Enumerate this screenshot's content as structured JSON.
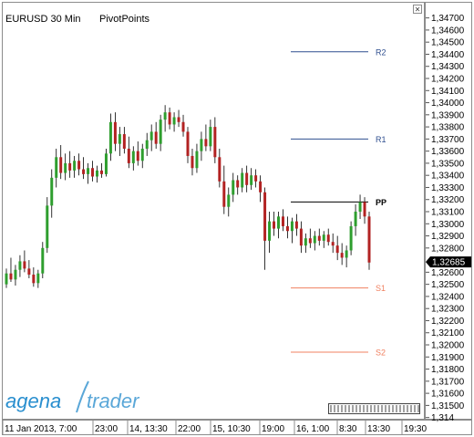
{
  "header": {
    "symbol_timeframe": "EURUSD 30 Min",
    "indicator": "PivotPoints"
  },
  "logo": {
    "part1": "agena",
    "part2": "trader"
  },
  "controls": {
    "close_glyph": "×"
  },
  "colors": {
    "bull": "#2e9e2e",
    "bear": "#b22222",
    "wick": "#000000",
    "resistance": "#2f4f8f",
    "pivot": "#000000",
    "support": "#f08060",
    "logo_primary": "#2a8fcf",
    "logo_secondary": "#5aa7d8"
  },
  "chart_data": {
    "type": "candlestick",
    "symbol": "EURUSD",
    "timeframe": "30 Min",
    "ylim": [
      1.3142,
      1.3475
    ],
    "y_ticks": [
      "1,34700",
      "1,34600",
      "1,34500",
      "1,34400",
      "1,34300",
      "1,34200",
      "1,34100",
      "1,34000",
      "1,33900",
      "1,33800",
      "1,33700",
      "1,33600",
      "1,33500",
      "1,33400",
      "1,33300",
      "1,33200",
      "1,33100",
      "1,33000",
      "1,32900",
      "1,32800",
      "1,32600",
      "1,32500",
      "1,32400",
      "1,32300",
      "1,32200",
      "1,32100",
      "1,32000",
      "1,31900",
      "1,31800",
      "1,31700",
      "1,31600",
      "1,31500",
      "1,314"
    ],
    "x_labels": [
      "11 Jan 2013, 7:00",
      "23:00",
      "14, 13:30",
      "22:00",
      "15, 10:30",
      "19:00",
      "16, 1:00",
      "8:30",
      "13:30",
      "19:30"
    ],
    "last_price": "1,32685",
    "pivot_levels": [
      {
        "name": "R2",
        "value": 1.3442
      },
      {
        "name": "R1",
        "value": 1.337
      },
      {
        "name": "PP",
        "value": 1.3318
      },
      {
        "name": "S1",
        "value": 1.3247
      },
      {
        "name": "S2",
        "value": 1.3194
      }
    ],
    "ohlc": [
      [
        1.325,
        1.3263,
        1.3247,
        1.3259
      ],
      [
        1.3259,
        1.3272,
        1.3252,
        1.3254
      ],
      [
        1.3254,
        1.3266,
        1.3249,
        1.3262
      ],
      [
        1.3262,
        1.3274,
        1.3256,
        1.3269
      ],
      [
        1.3269,
        1.3278,
        1.326,
        1.3263
      ],
      [
        1.3263,
        1.327,
        1.3255,
        1.3258
      ],
      [
        1.3258,
        1.3264,
        1.3248,
        1.3251
      ],
      [
        1.3251,
        1.3262,
        1.3247,
        1.3259
      ],
      [
        1.3259,
        1.3285,
        1.3255,
        1.328
      ],
      [
        1.328,
        1.3322,
        1.3276,
        1.3315
      ],
      [
        1.3315,
        1.3345,
        1.3305,
        1.3338
      ],
      [
        1.3338,
        1.3362,
        1.333,
        1.3355
      ],
      [
        1.3355,
        1.3365,
        1.3337,
        1.3342
      ],
      [
        1.3342,
        1.3358,
        1.3336,
        1.335
      ],
      [
        1.335,
        1.336,
        1.3338,
        1.3344
      ],
      [
        1.3344,
        1.3356,
        1.3338,
        1.3352
      ],
      [
        1.3352,
        1.3358,
        1.334,
        1.3345
      ],
      [
        1.3345,
        1.3355,
        1.3337,
        1.3341
      ],
      [
        1.3341,
        1.335,
        1.3333,
        1.3346
      ],
      [
        1.3346,
        1.3352,
        1.3335,
        1.3339
      ],
      [
        1.3339,
        1.3348,
        1.3334,
        1.3344
      ],
      [
        1.3344,
        1.335,
        1.3338,
        1.3341
      ],
      [
        1.3341,
        1.3362,
        1.3339,
        1.3358
      ],
      [
        1.3358,
        1.3391,
        1.3352,
        1.3384
      ],
      [
        1.3384,
        1.3392,
        1.336,
        1.3366
      ],
      [
        1.3366,
        1.338,
        1.3356,
        1.3374
      ],
      [
        1.3374,
        1.338,
        1.3358,
        1.3362
      ],
      [
        1.3362,
        1.3372,
        1.3346,
        1.335
      ],
      [
        1.335,
        1.3364,
        1.3344,
        1.336
      ],
      [
        1.336,
        1.3368,
        1.3348,
        1.3352
      ],
      [
        1.3352,
        1.3366,
        1.3346,
        1.3362
      ],
      [
        1.3362,
        1.3375,
        1.3356,
        1.3369
      ],
      [
        1.3369,
        1.3382,
        1.336,
        1.3376
      ],
      [
        1.3376,
        1.3384,
        1.3362,
        1.3366
      ],
      [
        1.3366,
        1.339,
        1.336,
        1.3386
      ],
      [
        1.3386,
        1.3398,
        1.3376,
        1.3392
      ],
      [
        1.3392,
        1.3396,
        1.3378,
        1.3382
      ],
      [
        1.3382,
        1.3392,
        1.3376,
        1.3388
      ],
      [
        1.3388,
        1.3394,
        1.338,
        1.3384
      ],
      [
        1.3384,
        1.339,
        1.3372,
        1.3376
      ],
      [
        1.3376,
        1.338,
        1.335,
        1.3356
      ],
      [
        1.3356,
        1.3362,
        1.334,
        1.3346
      ],
      [
        1.3346,
        1.3366,
        1.3342,
        1.336
      ],
      [
        1.336,
        1.3376,
        1.3352,
        1.337
      ],
      [
        1.337,
        1.3382,
        1.336,
        1.3364
      ],
      [
        1.3364,
        1.3386,
        1.336,
        1.338
      ],
      [
        1.338,
        1.3388,
        1.335,
        1.3355
      ],
      [
        1.3355,
        1.3362,
        1.333,
        1.3335
      ],
      [
        1.3335,
        1.3348,
        1.3308,
        1.3314
      ],
      [
        1.3314,
        1.333,
        1.3306,
        1.3324
      ],
      [
        1.3324,
        1.3342,
        1.3318,
        1.3336
      ],
      [
        1.3336,
        1.334,
        1.3324,
        1.333
      ],
      [
        1.333,
        1.3346,
        1.3326,
        1.3342
      ],
      [
        1.3342,
        1.3348,
        1.3326,
        1.3332
      ],
      [
        1.3332,
        1.3346,
        1.3328,
        1.334
      ],
      [
        1.334,
        1.3345,
        1.333,
        1.3335
      ],
      [
        1.3335,
        1.334,
        1.3318,
        1.3326
      ],
      [
        1.3326,
        1.333,
        1.3262,
        1.3286
      ],
      [
        1.3286,
        1.331,
        1.3276,
        1.3302
      ],
      [
        1.3302,
        1.331,
        1.329,
        1.3296
      ],
      [
        1.3296,
        1.331,
        1.3288,
        1.3306
      ],
      [
        1.3306,
        1.3312,
        1.3294,
        1.3298
      ],
      [
        1.3298,
        1.3306,
        1.3288,
        1.3294
      ],
      [
        1.3294,
        1.3305,
        1.3284,
        1.3302
      ],
      [
        1.3302,
        1.3308,
        1.329,
        1.3296
      ],
      [
        1.3296,
        1.3302,
        1.3276,
        1.3282
      ],
      [
        1.3282,
        1.3292,
        1.3276,
        1.3288
      ],
      [
        1.3288,
        1.3296,
        1.328,
        1.3284
      ],
      [
        1.3284,
        1.3294,
        1.3278,
        1.329
      ],
      [
        1.329,
        1.3296,
        1.3282,
        1.3286
      ],
      [
        1.3286,
        1.3294,
        1.328,
        1.3291
      ],
      [
        1.3291,
        1.3296,
        1.3282,
        1.3285
      ],
      [
        1.3285,
        1.3292,
        1.3276,
        1.3282
      ],
      [
        1.3282,
        1.329,
        1.327,
        1.3276
      ],
      [
        1.3276,
        1.3284,
        1.3266,
        1.3272
      ],
      [
        1.3272,
        1.3282,
        1.3264,
        1.3278
      ],
      [
        1.3278,
        1.3302,
        1.3274,
        1.3298
      ],
      [
        1.3298,
        1.3316,
        1.329,
        1.331
      ],
      [
        1.331,
        1.3324,
        1.3304,
        1.3318
      ],
      [
        1.3318,
        1.3322,
        1.33,
        1.3306
      ],
      [
        1.3306,
        1.331,
        1.3262,
        1.3268
      ]
    ]
  }
}
